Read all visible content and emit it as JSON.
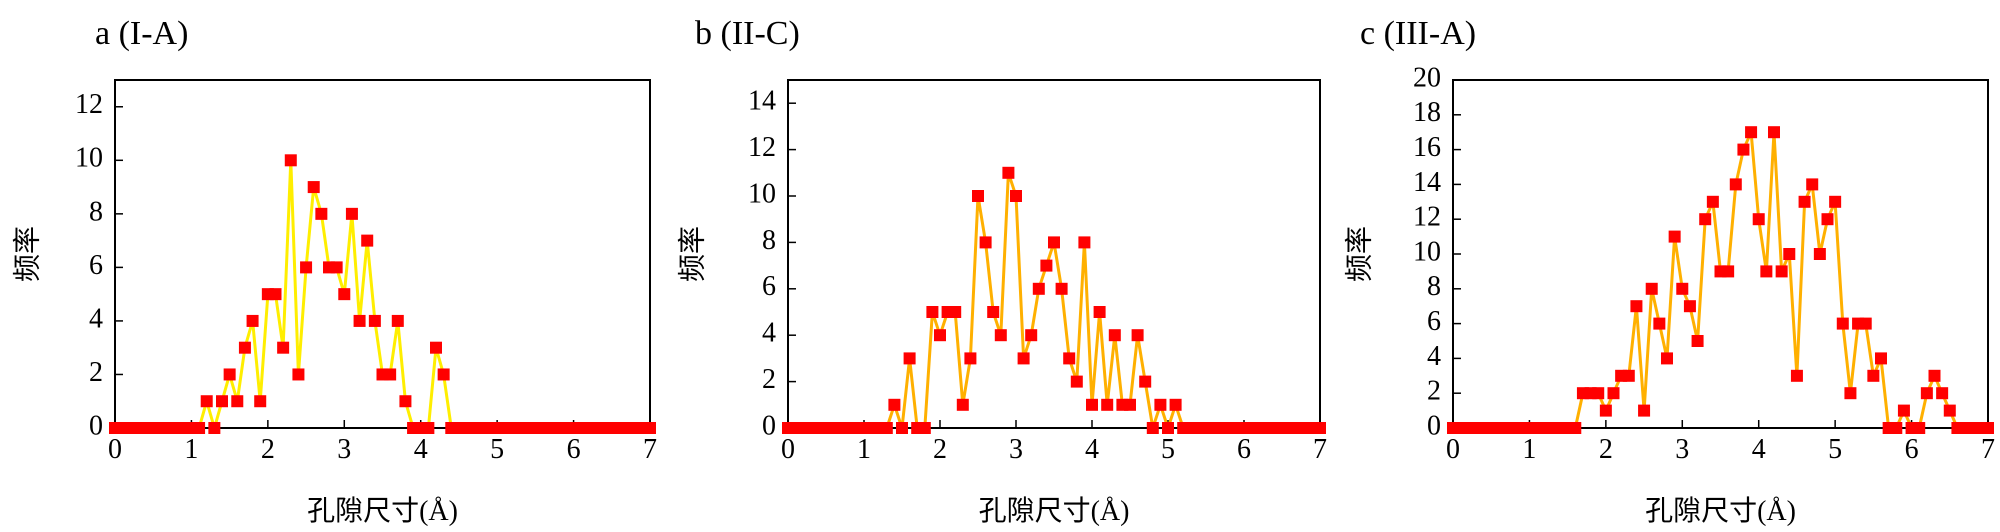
{
  "chart_data": [
    {
      "type": "line",
      "title": "a (I-A)",
      "xlabel": "孔隙尺寸(Å)",
      "ylabel": "频率",
      "xlim": [
        0,
        7
      ],
      "ylim": [
        0,
        13
      ],
      "xticks": [
        0,
        1,
        2,
        3,
        4,
        5,
        6,
        7
      ],
      "yticks": [
        0,
        2,
        4,
        6,
        8,
        10,
        12
      ],
      "grid": false,
      "legend": "none",
      "line_color": "#ffee00",
      "marker_color": "#ff0000",
      "series": [
        {
          "x": [
            0,
            0.1,
            0.2,
            0.3,
            0.4,
            0.5,
            0.6,
            0.7,
            0.8,
            0.9,
            1.0,
            1.1,
            1.2,
            1.3,
            1.4,
            1.5,
            1.6,
            1.7,
            1.8,
            1.9,
            2.0,
            2.1,
            2.2,
            2.3,
            2.4,
            2.5,
            2.6,
            2.7,
            2.8,
            2.9,
            3.0,
            3.1,
            3.2,
            3.3,
            3.4,
            3.5,
            3.6,
            3.7,
            3.8,
            3.9,
            4.0,
            4.1,
            4.2,
            4.3,
            4.4,
            4.5,
            4.6,
            4.7,
            4.8,
            4.9,
            5.0,
            5.1,
            5.2,
            5.3,
            5.4,
            5.5,
            5.6,
            5.7,
            5.8,
            5.9,
            6.0,
            6.1,
            6.2,
            6.3,
            6.4,
            6.5,
            6.6,
            6.7,
            6.8,
            6.9,
            7.0
          ],
          "y": [
            0,
            0,
            0,
            0,
            0,
            0,
            0,
            0,
            0,
            0,
            0,
            0,
            1,
            0,
            1,
            2,
            1,
            3,
            4,
            1,
            5,
            5,
            3,
            10,
            2,
            6,
            9,
            8,
            6,
            6,
            5,
            8,
            4,
            7,
            4,
            2,
            2,
            4,
            1,
            0,
            0,
            0,
            3,
            2,
            0,
            0,
            0,
            0,
            0,
            0,
            0,
            0,
            0,
            0,
            0,
            0,
            0,
            0,
            0,
            0,
            0,
            0,
            0,
            0,
            0,
            0,
            0,
            0,
            0,
            0,
            0
          ]
        }
      ]
    },
    {
      "type": "line",
      "title": "b (II-C)",
      "xlabel": "孔隙尺寸(Å)",
      "ylabel": "频率",
      "xlim": [
        0,
        7
      ],
      "ylim": [
        0,
        15
      ],
      "xticks": [
        0,
        1,
        2,
        3,
        4,
        5,
        6,
        7
      ],
      "yticks": [
        0,
        2,
        4,
        6,
        8,
        10,
        12,
        14
      ],
      "grid": false,
      "legend": "none",
      "line_color": "#ffb000",
      "marker_color": "#ff0000",
      "series": [
        {
          "x": [
            0,
            0.1,
            0.2,
            0.3,
            0.4,
            0.5,
            0.6,
            0.7,
            0.8,
            0.9,
            1.0,
            1.1,
            1.2,
            1.3,
            1.4,
            1.5,
            1.6,
            1.7,
            1.8,
            1.9,
            2.0,
            2.1,
            2.2,
            2.3,
            2.4,
            2.5,
            2.6,
            2.7,
            2.8,
            2.9,
            3.0,
            3.1,
            3.2,
            3.3,
            3.4,
            3.5,
            3.6,
            3.7,
            3.8,
            3.9,
            4.0,
            4.1,
            4.2,
            4.3,
            4.4,
            4.5,
            4.6,
            4.7,
            4.8,
            4.9,
            5.0,
            5.1,
            5.2,
            5.3,
            5.4,
            5.5,
            5.6,
            5.7,
            5.8,
            5.9,
            6.0,
            6.1,
            6.2,
            6.3,
            6.4,
            6.5,
            6.6,
            6.7,
            6.8,
            6.9,
            7.0
          ],
          "y": [
            0,
            0,
            0,
            0,
            0,
            0,
            0,
            0,
            0,
            0,
            0,
            0,
            0,
            0,
            1,
            0,
            3,
            0,
            0,
            5,
            4,
            5,
            5,
            1,
            3,
            10,
            8,
            5,
            4,
            11,
            10,
            3,
            4,
            6,
            7,
            8,
            6,
            3,
            2,
            8,
            1,
            5,
            1,
            4,
            1,
            1,
            4,
            2,
            0,
            1,
            0,
            1,
            0,
            0,
            0,
            0,
            0,
            0,
            0,
            0,
            0,
            0,
            0,
            0,
            0,
            0,
            0,
            0,
            0,
            0,
            0
          ]
        }
      ]
    },
    {
      "type": "line",
      "title": "c (III-A)",
      "xlabel": "孔隙尺寸(Å)",
      "ylabel": "频率",
      "xlim": [
        0,
        7
      ],
      "ylim": [
        0,
        20
      ],
      "xticks": [
        0,
        1,
        2,
        3,
        4,
        5,
        6,
        7
      ],
      "yticks": [
        0,
        2,
        4,
        6,
        8,
        10,
        12,
        14,
        16,
        18,
        20
      ],
      "grid": false,
      "legend": "none",
      "line_color": "#ffb000",
      "marker_color": "#ff0000",
      "series": [
        {
          "x": [
            0,
            0.1,
            0.2,
            0.3,
            0.4,
            0.5,
            0.6,
            0.7,
            0.8,
            0.9,
            1.0,
            1.1,
            1.2,
            1.3,
            1.4,
            1.5,
            1.6,
            1.7,
            1.8,
            1.9,
            2.0,
            2.1,
            2.2,
            2.3,
            2.4,
            2.5,
            2.6,
            2.7,
            2.8,
            2.9,
            3.0,
            3.1,
            3.2,
            3.3,
            3.4,
            3.5,
            3.6,
            3.7,
            3.8,
            3.9,
            4.0,
            4.1,
            4.2,
            4.3,
            4.4,
            4.5,
            4.6,
            4.7,
            4.8,
            4.9,
            5.0,
            5.1,
            5.2,
            5.3,
            5.4,
            5.5,
            5.6,
            5.7,
            5.8,
            5.9,
            6.0,
            6.1,
            6.2,
            6.3,
            6.4,
            6.5,
            6.6,
            6.7,
            6.8,
            6.9,
            7.0
          ],
          "y": [
            0,
            0,
            0,
            0,
            0,
            0,
            0,
            0,
            0,
            0,
            0,
            0,
            0,
            0,
            0,
            0,
            0,
            2,
            2,
            2,
            1,
            2,
            3,
            3,
            7,
            1,
            8,
            6,
            4,
            11,
            8,
            7,
            5,
            12,
            13,
            9,
            9,
            14,
            16,
            17,
            12,
            9,
            17,
            9,
            10,
            3,
            13,
            14,
            10,
            12,
            13,
            6,
            2,
            6,
            6,
            3,
            4,
            0,
            0,
            1,
            0,
            0,
            2,
            3,
            2,
            1,
            0,
            0,
            0,
            0,
            0
          ]
        }
      ]
    }
  ]
}
